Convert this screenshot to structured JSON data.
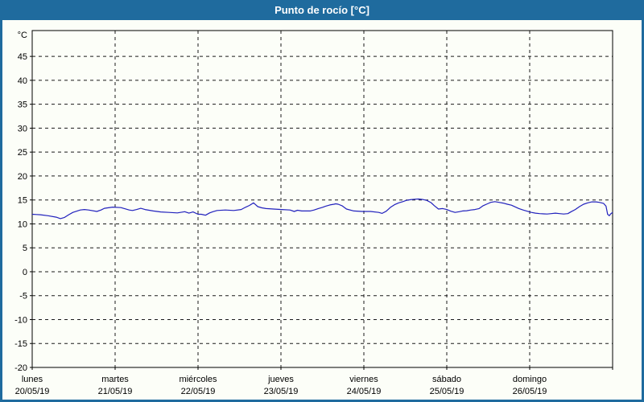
{
  "title": "Punto de rocío [°C]",
  "colors": {
    "titlebar_bg": "#1f6b9e",
    "titlebar_text": "#ffffff",
    "window_border": "#1f6b9e",
    "content_bg": "#fcfef8",
    "grid": "#1a1a1a",
    "axis": "#000000",
    "label": "#000000",
    "line": "#2121bd"
  },
  "chart_data": {
    "type": "line",
    "title": "Punto de rocío [°C]",
    "ylabel": "°C",
    "ylim": [
      -20,
      50.4
    ],
    "y_ticks": [
      45,
      40,
      35,
      30,
      25,
      20,
      15,
      10,
      5,
      0,
      -5,
      -10,
      -15,
      -20
    ],
    "x_days": 7,
    "x_categories": [
      {
        "weekday": "lunes",
        "date": "20/05/19"
      },
      {
        "weekday": "martes",
        "date": "21/05/19"
      },
      {
        "weekday": "miércoles",
        "date": "22/05/19"
      },
      {
        "weekday": "jueves",
        "date": "23/05/19"
      },
      {
        "weekday": "viernes",
        "date": "24/05/19"
      },
      {
        "weekday": "sábado",
        "date": "25/05/19"
      },
      {
        "weekday": "domingo",
        "date": "26/05/19"
      }
    ],
    "grid": "dashed",
    "legend": "none",
    "series": [
      {
        "name": "Punto de rocío",
        "color": "#2121bd",
        "points": [
          [
            0,
            12.0
          ],
          [
            0.05,
            11.95
          ],
          [
            0.1,
            11.9
          ],
          [
            0.19,
            11.7
          ],
          [
            0.29,
            11.4
          ],
          [
            0.34,
            11.1
          ],
          [
            0.39,
            11.35
          ],
          [
            0.44,
            11.9
          ],
          [
            0.49,
            12.4
          ],
          [
            0.58,
            12.9
          ],
          [
            0.63,
            13.0
          ],
          [
            0.68,
            12.9
          ],
          [
            0.78,
            12.6
          ],
          [
            0.83,
            12.9
          ],
          [
            0.87,
            13.25
          ],
          [
            0.97,
            13.5
          ],
          [
            1.07,
            13.4
          ],
          [
            1.17,
            12.9
          ],
          [
            1.21,
            12.8
          ],
          [
            1.26,
            13.0
          ],
          [
            1.31,
            13.25
          ],
          [
            1.36,
            13.0
          ],
          [
            1.46,
            12.7
          ],
          [
            1.55,
            12.5
          ],
          [
            1.65,
            12.4
          ],
          [
            1.75,
            12.3
          ],
          [
            1.84,
            12.55
          ],
          [
            1.89,
            12.25
          ],
          [
            1.94,
            12.5
          ],
          [
            2.0,
            12.0
          ],
          [
            2.04,
            12.0
          ],
          [
            2.09,
            11.8
          ],
          [
            2.14,
            12.3
          ],
          [
            2.18,
            12.55
          ],
          [
            2.23,
            12.8
          ],
          [
            2.33,
            12.9
          ],
          [
            2.43,
            12.8
          ],
          [
            2.52,
            13.0
          ],
          [
            2.57,
            13.45
          ],
          [
            2.62,
            13.85
          ],
          [
            2.67,
            14.4
          ],
          [
            2.72,
            13.6
          ],
          [
            2.77,
            13.35
          ],
          [
            2.82,
            13.2
          ],
          [
            2.91,
            13.1
          ],
          [
            3.01,
            13.0
          ],
          [
            3.11,
            12.9
          ],
          [
            3.16,
            12.6
          ],
          [
            3.2,
            12.85
          ],
          [
            3.25,
            12.7
          ],
          [
            3.35,
            12.7
          ],
          [
            3.4,
            12.9
          ],
          [
            3.45,
            13.2
          ],
          [
            3.5,
            13.45
          ],
          [
            3.54,
            13.7
          ],
          [
            3.59,
            13.95
          ],
          [
            3.64,
            14.1
          ],
          [
            3.66,
            14.2
          ],
          [
            3.69,
            14.1
          ],
          [
            3.74,
            13.75
          ],
          [
            3.79,
            13.1
          ],
          [
            3.88,
            12.7
          ],
          [
            3.98,
            12.6
          ],
          [
            4.08,
            12.6
          ],
          [
            4.18,
            12.4
          ],
          [
            4.22,
            12.2
          ],
          [
            4.27,
            12.65
          ],
          [
            4.32,
            13.45
          ],
          [
            4.37,
            14.0
          ],
          [
            4.42,
            14.4
          ],
          [
            4.47,
            14.65
          ],
          [
            4.51,
            14.9
          ],
          [
            4.56,
            15.05
          ],
          [
            4.61,
            15.15
          ],
          [
            4.66,
            15.2
          ],
          [
            4.71,
            15.1
          ],
          [
            4.76,
            14.9
          ],
          [
            4.81,
            14.45
          ],
          [
            4.85,
            13.8
          ],
          [
            4.9,
            13.1
          ],
          [
            4.95,
            13.2
          ],
          [
            5.0,
            13.0
          ],
          [
            5.05,
            12.65
          ],
          [
            5.1,
            12.4
          ],
          [
            5.15,
            12.55
          ],
          [
            5.19,
            12.7
          ],
          [
            5.24,
            12.75
          ],
          [
            5.29,
            12.9
          ],
          [
            5.34,
            13.0
          ],
          [
            5.39,
            13.2
          ],
          [
            5.44,
            13.8
          ],
          [
            5.49,
            14.2
          ],
          [
            5.53,
            14.5
          ],
          [
            5.58,
            14.65
          ],
          [
            5.63,
            14.5
          ],
          [
            5.68,
            14.35
          ],
          [
            5.73,
            14.1
          ],
          [
            5.78,
            13.9
          ],
          [
            5.83,
            13.5
          ],
          [
            5.87,
            13.2
          ],
          [
            5.92,
            12.9
          ],
          [
            5.97,
            12.65
          ],
          [
            6.02,
            12.4
          ],
          [
            6.07,
            12.25
          ],
          [
            6.12,
            12.15
          ],
          [
            6.17,
            12.1
          ],
          [
            6.21,
            12.05
          ],
          [
            6.26,
            12.15
          ],
          [
            6.31,
            12.25
          ],
          [
            6.36,
            12.15
          ],
          [
            6.41,
            12.05
          ],
          [
            6.46,
            12.15
          ],
          [
            6.5,
            12.55
          ],
          [
            6.55,
            13.0
          ],
          [
            6.6,
            13.6
          ],
          [
            6.65,
            14.1
          ],
          [
            6.7,
            14.4
          ],
          [
            6.75,
            14.6
          ],
          [
            6.8,
            14.6
          ],
          [
            6.84,
            14.5
          ],
          [
            6.89,
            14.3
          ],
          [
            6.92,
            13.7
          ],
          [
            6.94,
            12.0
          ],
          [
            6.96,
            11.7
          ],
          [
            6.98,
            12.15
          ],
          [
            7.0,
            12.4
          ]
        ]
      }
    ]
  }
}
